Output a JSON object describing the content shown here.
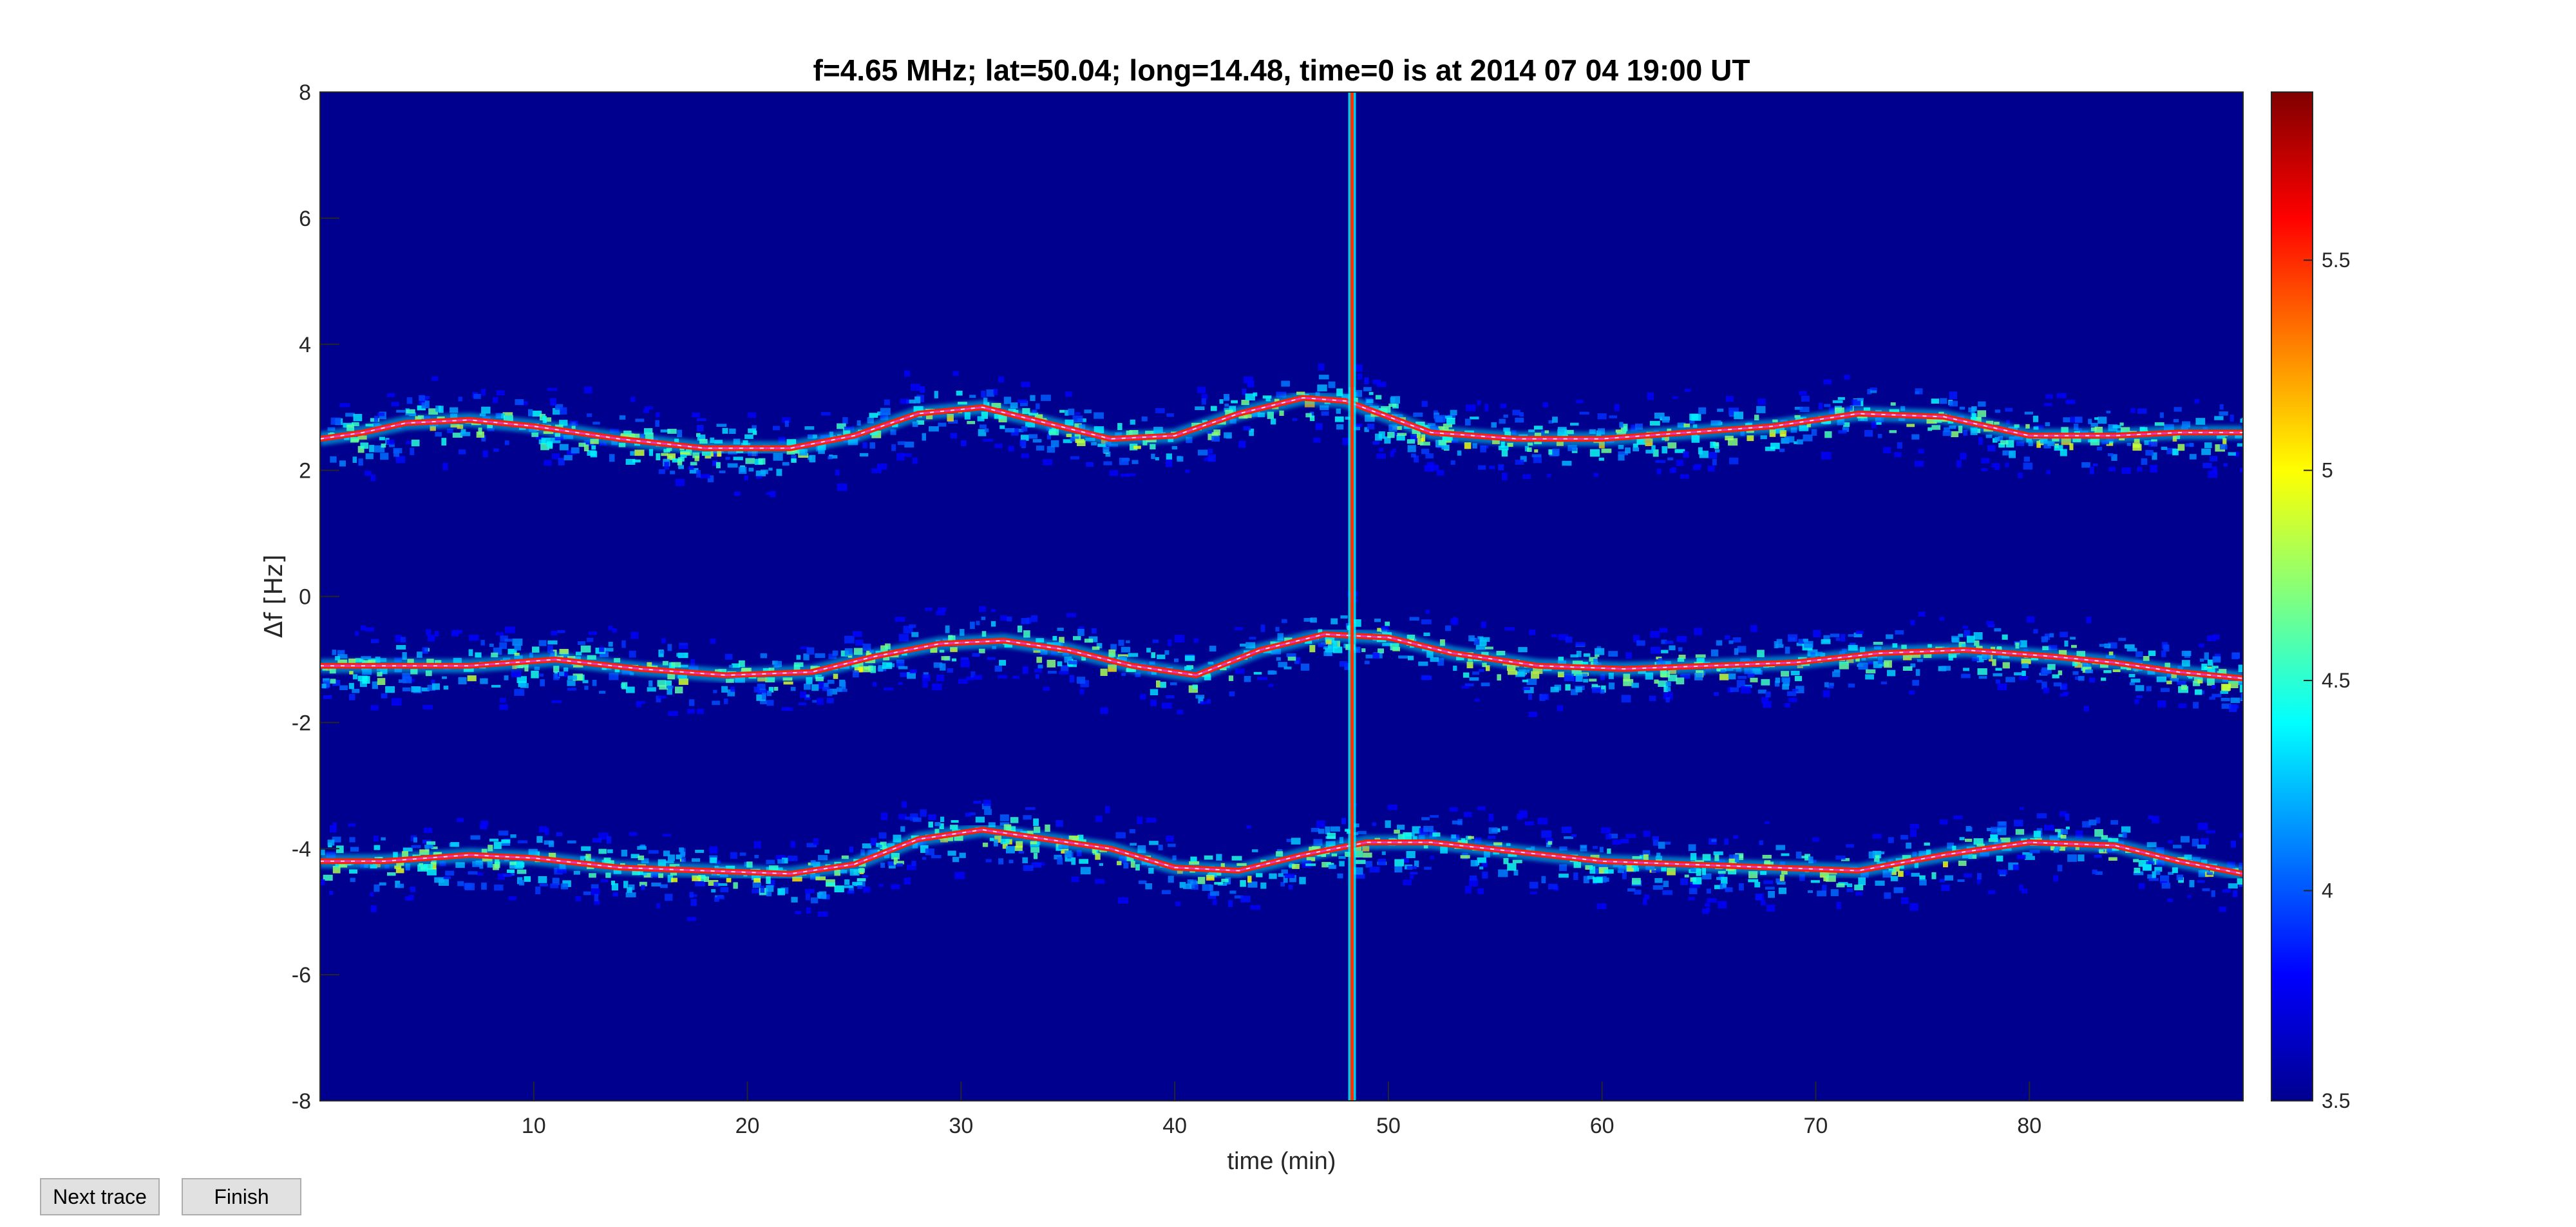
{
  "chart_data": {
    "type": "heatmap",
    "title": "f=4.65 MHz;  lat=50.04; long=14.48, time=0 is at 2014 07 04 19:00 UT",
    "xlabel": "time (min)",
    "ylabel": "Δf [Hz]",
    "xlim": [
      0,
      90
    ],
    "ylim": [
      -8,
      8
    ],
    "xticks": [
      10,
      20,
      30,
      40,
      50,
      60,
      70,
      80
    ],
    "yticks": [
      -8,
      -6,
      -4,
      -2,
      0,
      2,
      4,
      6,
      8
    ],
    "colorbar": {
      "min": 3.5,
      "max": 5.9,
      "ticks": [
        3.5,
        4,
        4.5,
        5,
        5.5
      ],
      "colormap": "jet"
    },
    "background_color": "#00008f",
    "trace_color": "#d040d0",
    "vertical_line": {
      "x": 48.3
    },
    "series": [
      {
        "x": [
          0,
          2,
          4,
          7,
          10,
          14,
          18,
          22,
          25,
          28,
          31,
          34,
          37,
          40,
          43,
          46,
          48,
          52,
          56,
          60,
          64,
          68,
          72,
          76,
          80,
          84,
          87,
          90
        ],
        "y": [
          2.5,
          2.6,
          2.75,
          2.8,
          2.7,
          2.5,
          2.35,
          2.35,
          2.55,
          2.9,
          3.0,
          2.75,
          2.5,
          2.55,
          2.9,
          3.15,
          3.1,
          2.6,
          2.5,
          2.5,
          2.6,
          2.7,
          2.9,
          2.85,
          2.55,
          2.55,
          2.6,
          2.6
        ]
      },
      {
        "x": [
          0,
          3,
          7,
          11,
          15,
          19,
          23,
          26,
          29,
          32,
          35,
          38,
          41,
          44,
          47,
          50,
          53,
          57,
          61,
          65,
          69,
          73,
          77,
          81,
          84,
          87,
          90
        ],
        "y": [
          -1.1,
          -1.1,
          -1.1,
          -1.0,
          -1.15,
          -1.25,
          -1.2,
          -0.95,
          -0.75,
          -0.7,
          -0.85,
          -1.1,
          -1.25,
          -0.85,
          -0.6,
          -0.65,
          -0.9,
          -1.1,
          -1.15,
          -1.1,
          -1.05,
          -0.9,
          -0.85,
          -0.95,
          -1.05,
          -1.2,
          -1.3
        ]
      },
      {
        "x": [
          0,
          3,
          7,
          10,
          14,
          18,
          22,
          25,
          28,
          31,
          34,
          37,
          40,
          43,
          46,
          49,
          52,
          56,
          60,
          64,
          68,
          72,
          76,
          80,
          84,
          87,
          90
        ],
        "y": [
          -4.2,
          -4.2,
          -4.1,
          -4.15,
          -4.3,
          -4.35,
          -4.4,
          -4.25,
          -3.85,
          -3.7,
          -3.85,
          -4.0,
          -4.3,
          -4.35,
          -4.1,
          -3.9,
          -3.9,
          -4.05,
          -4.2,
          -4.25,
          -4.3,
          -4.35,
          -4.1,
          -3.9,
          -3.95,
          -4.2,
          -4.4
        ]
      }
    ]
  },
  "controls": {
    "next_label": "Next trace",
    "finish_label": "Finish"
  }
}
